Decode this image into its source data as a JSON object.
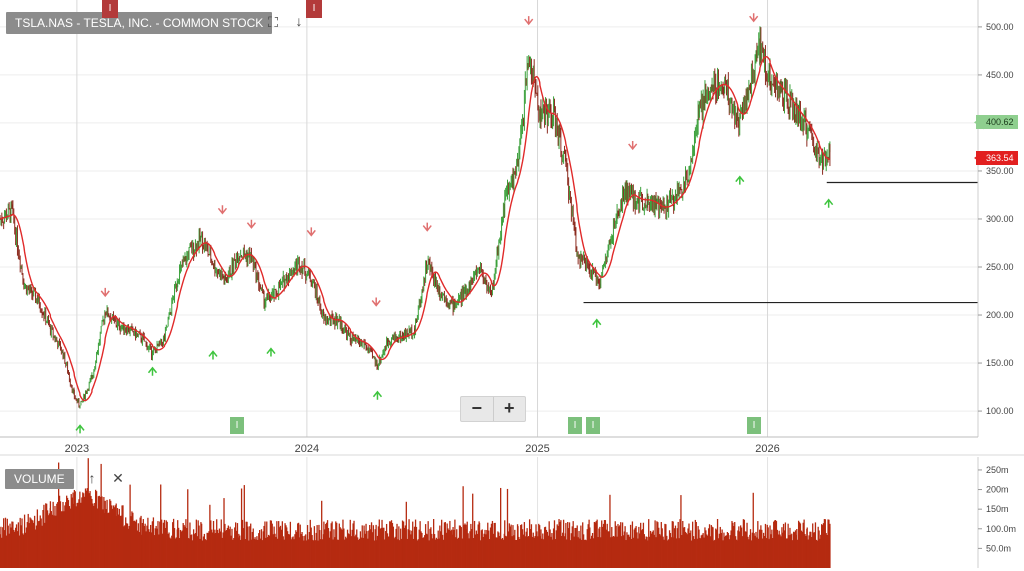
{
  "header": {
    "title": "TSLA.NAS - TESLA, INC. - COMMON STOCK",
    "volume_label": "VOLUME"
  },
  "toolbar": {
    "zoom_out_label": "−",
    "zoom_in_label": "+",
    "fullscreen_icon": "expand-icon",
    "download_icon": "download-icon"
  },
  "badges": {
    "top_red": [
      "I",
      "I"
    ],
    "bottom_green": [
      "I",
      "I",
      "I",
      "I"
    ]
  },
  "price_tags": {
    "last": "400.62",
    "avg": "363.54"
  },
  "colors": {
    "candle_up": "#3aa03a",
    "candle_down": "#8b2a1e",
    "ma_line": "#e02a2a",
    "volume": "#b52a10",
    "arrow_up": "#3ec43e",
    "arrow_down": "#e07070"
  },
  "chart_data": [
    {
      "type": "line",
      "title": "TSLA.NAS - TESLA, INC. - COMMON STOCK",
      "x_ticks": [
        "2023",
        "2024",
        "2025",
        "2026"
      ],
      "y_ticks": [
        "100.00",
        "150.00",
        "200.00",
        "250.00",
        "300.00",
        "350.00",
        "400.00",
        "450.00",
        "500.00"
      ],
      "ylim": [
        73,
        528
      ],
      "x_range": [
        "2022-09",
        "2026-12"
      ],
      "series": [
        {
          "points": [
            [
              "2022-09-01",
              300
            ],
            [
              "2022-09-20",
              308
            ],
            [
              "2022-10-10",
              230
            ],
            [
              "2022-11-01",
              215
            ],
            [
              "2022-11-20",
              185
            ],
            [
              "2022-12-10",
              160
            ],
            [
              "2022-12-28",
              115
            ],
            [
              "2023-01-06",
              105
            ],
            [
              "2023-01-25",
              135
            ],
            [
              "2023-02-15",
              205
            ],
            [
              "2023-03-05",
              190
            ],
            [
              "2023-03-25",
              185
            ],
            [
              "2023-04-15",
              175
            ],
            [
              "2023-05-01",
              160
            ],
            [
              "2023-05-20",
              175
            ],
            [
              "2023-06-10",
              240
            ],
            [
              "2023-06-28",
              265
            ],
            [
              "2023-07-18",
              280
            ],
            [
              "2023-08-08",
              250
            ],
            [
              "2023-08-25",
              235
            ],
            [
              "2023-09-15",
              265
            ],
            [
              "2023-10-05",
              260
            ],
            [
              "2023-10-25",
              215
            ],
            [
              "2023-11-10",
              220
            ],
            [
              "2023-11-30",
              240
            ],
            [
              "2023-12-20",
              255
            ],
            [
              "2024-01-10",
              235
            ],
            [
              "2024-01-28",
              195
            ],
            [
              "2024-02-20",
              195
            ],
            [
              "2024-03-10",
              175
            ],
            [
              "2024-04-01",
              170
            ],
            [
              "2024-04-22",
              148
            ],
            [
              "2024-05-10",
              175
            ],
            [
              "2024-06-01",
              178
            ],
            [
              "2024-06-20",
              185
            ],
            [
              "2024-07-10",
              255
            ],
            [
              "2024-07-30",
              225
            ],
            [
              "2024-08-20",
              210
            ],
            [
              "2024-09-10",
              225
            ],
            [
              "2024-10-01",
              250
            ],
            [
              "2024-10-20",
              220
            ],
            [
              "2024-11-10",
              320
            ],
            [
              "2024-12-01",
              355
            ],
            [
              "2024-12-18",
              470
            ],
            [
              "2025-01-05",
              410
            ],
            [
              "2025-01-25",
              410
            ],
            [
              "2025-02-15",
              355
            ],
            [
              "2025-03-05",
              265
            ],
            [
              "2025-03-25",
              245
            ],
            [
              "2025-04-10",
              235
            ],
            [
              "2025-04-30",
              285
            ],
            [
              "2025-05-20",
              330
            ],
            [
              "2025-06-05",
              320
            ],
            [
              "2025-06-25",
              320
            ],
            [
              "2025-07-15",
              310
            ],
            [
              "2025-08-05",
              320
            ],
            [
              "2025-08-25",
              340
            ],
            [
              "2025-09-15",
              410
            ],
            [
              "2025-10-05",
              440
            ],
            [
              "2025-10-25",
              440
            ],
            [
              "2025-11-15",
              400
            ],
            [
              "2025-12-05",
              440
            ],
            [
              "2025-12-20",
              480
            ],
            [
              "2026-01-05",
              445
            ],
            [
              "2026-01-25",
              430
            ],
            [
              "2026-02-15",
              410
            ],
            [
              "2026-03-05",
              395
            ],
            [
              "2026-03-25",
              360
            ],
            [
              "2026-04-10",
              363.54
            ]
          ]
        }
      ],
      "last_price": 400.62,
      "moving_average_last": 363.54,
      "support_levels": [
        338,
        213
      ]
    },
    {
      "type": "bar",
      "title": "VOLUME",
      "y_ticks": [
        "50.0m",
        "100.0m",
        "150m",
        "200m",
        "250m"
      ],
      "ylim": [
        0,
        283
      ],
      "x_range": [
        "2022-09",
        "2026-12"
      ]
    }
  ]
}
